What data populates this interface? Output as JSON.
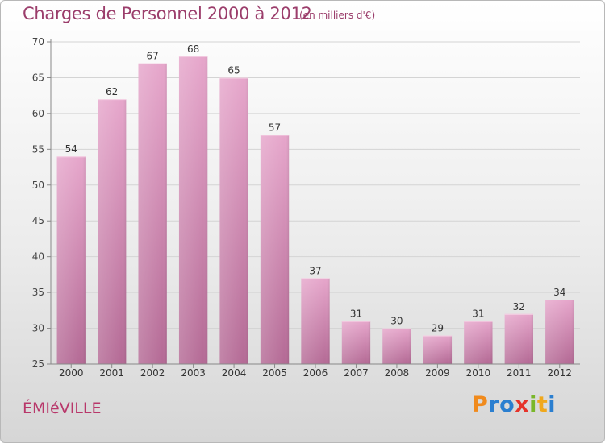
{
  "header": {
    "title": "Charges de Personnel 2000 à 2012",
    "subtitle": "(en milliers d'€)"
  },
  "footer": {
    "town": "ÉMIéVILLE",
    "brand": "Proxiti"
  },
  "colors": {
    "bar_top": "#e6a6cb",
    "bar_bottom": "#b46a95",
    "title": "#9b3d6b",
    "axis": "#888888",
    "grid": "#d4d4d4"
  },
  "chart_data": {
    "type": "bar",
    "categories": [
      "2000",
      "2001",
      "2002",
      "2003",
      "2004",
      "2005",
      "2006",
      "2007",
      "2008",
      "2009",
      "2010",
      "2011",
      "2012"
    ],
    "values": [
      54,
      62,
      67,
      68,
      65,
      57,
      37,
      31,
      30,
      29,
      31,
      32,
      34
    ],
    "title": "Charges de Personnel 2000 à 2012",
    "subtitle": "(en milliers d'€)",
    "xlabel": "",
    "ylabel": "",
    "ylim": [
      25,
      70
    ],
    "yticks": [
      25,
      30,
      35,
      40,
      45,
      50,
      55,
      60,
      65,
      70
    ],
    "grid": true,
    "legend": "none"
  }
}
